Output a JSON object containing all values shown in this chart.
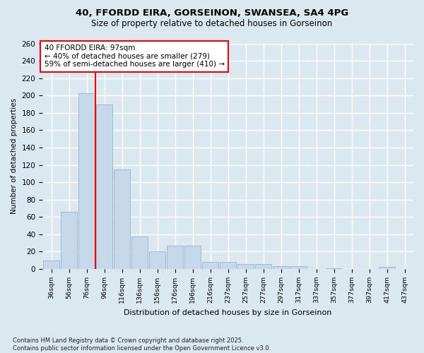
{
  "title_line1": "40, FFORDD EIRA, GORSEINON, SWANSEA, SA4 4PG",
  "title_line2": "Size of property relative to detached houses in Gorseinon",
  "xlabel": "Distribution of detached houses by size in Gorseinon",
  "ylabel": "Number of detached properties",
  "footer": "Contains HM Land Registry data © Crown copyright and database right 2025.\nContains public sector information licensed under the Open Government Licence v3.0.",
  "bar_labels": [
    "36sqm",
    "56sqm",
    "76sqm",
    "96sqm",
    "116sqm",
    "136sqm",
    "156sqm",
    "176sqm",
    "196sqm",
    "216sqm",
    "237sqm",
    "257sqm",
    "277sqm",
    "297sqm",
    "317sqm",
    "337sqm",
    "357sqm",
    "377sqm",
    "397sqm",
    "417sqm",
    "437sqm"
  ],
  "bar_values": [
    10,
    66,
    203,
    190,
    115,
    37,
    20,
    27,
    27,
    8,
    8,
    6,
    6,
    3,
    3,
    0,
    1,
    0,
    0,
    2,
    0
  ],
  "bar_color": "#c8d8eb",
  "bar_edge_color": "#9ab4cc",
  "vline_index": 3,
  "property_line_label": "40 FFORDD EIRA: 97sqm",
  "annotation_line1": "← 40% of detached houses are smaller (279)",
  "annotation_line2": "59% of semi-detached houses are larger (410) →",
  "annotation_box_color": "white",
  "annotation_box_edge": "red",
  "vline_color": "red",
  "ylim": [
    0,
    260
  ],
  "yticks": [
    0,
    20,
    40,
    60,
    80,
    100,
    120,
    140,
    160,
    180,
    200,
    220,
    240,
    260
  ],
  "bg_color": "#dce8f0",
  "plot_bg_color": "#dce8f0",
  "grid_color": "white",
  "title1_fontsize": 9.5,
  "title2_fontsize": 8.5
}
